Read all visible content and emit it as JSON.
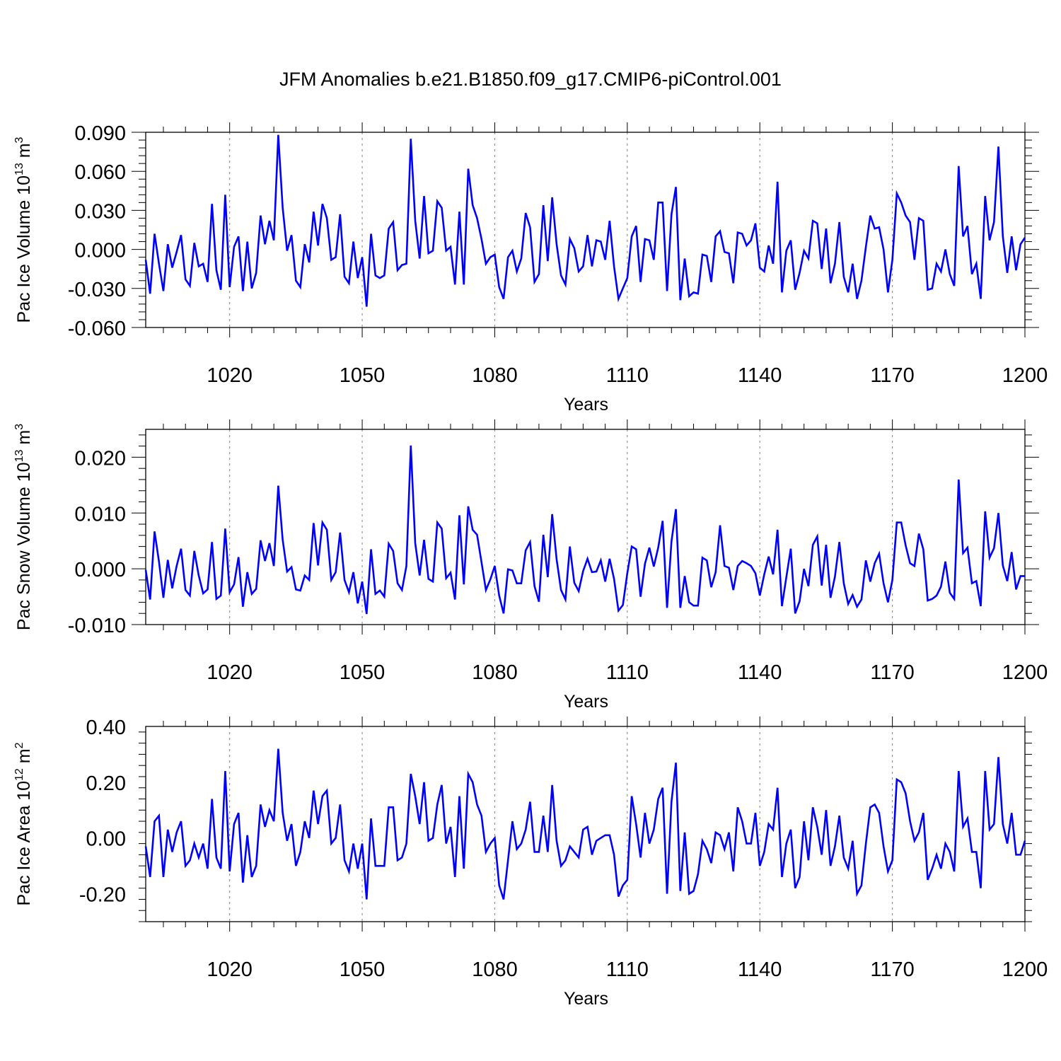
{
  "title": "JFM Anomalies b.e21.B1850.f09_g17.CMIP6-piControl.001",
  "colors": {
    "series": "#0000ff",
    "axis": "#000000",
    "grid": "#808080"
  },
  "chart_data": [
    {
      "type": "line",
      "ylabel_main": "Pac Ice Volume 10",
      "ylabel_exp": "13",
      "ylabel_unit": " m",
      "ylabel_unit_exp": "3",
      "xlabel": "Years",
      "xlim": [
        1001,
        1200
      ],
      "ylim": [
        -0.06,
        0.09
      ],
      "yticks": [
        -0.06,
        -0.03,
        0.0,
        0.03,
        0.06,
        0.09
      ],
      "ytick_labels": [
        "-0.060",
        "-0.030",
        "0.000",
        "0.030",
        "0.060",
        "0.090"
      ],
      "xticks": [
        1020,
        1050,
        1080,
        1110,
        1140,
        1170,
        1200
      ],
      "xtick_labels": [
        "1020",
        "1050",
        "1080",
        "1110",
        "1140",
        "1170",
        "1200"
      ],
      "grid_x": true,
      "x_start": 1001,
      "values": [
        -0.008,
        -0.034,
        0.012,
        -0.011,
        -0.032,
        0.004,
        -0.014,
        -0.002,
        0.011,
        -0.023,
        -0.028,
        0.005,
        -0.013,
        -0.011,
        -0.025,
        0.035,
        -0.016,
        -0.031,
        0.042,
        -0.029,
        0.002,
        0.01,
        -0.032,
        0.006,
        -0.03,
        -0.018,
        0.026,
        0.004,
        0.022,
        0.007,
        0.088,
        0.032,
        -0.001,
        0.011,
        -0.024,
        -0.029,
        0.004,
        -0.01,
        0.029,
        0.003,
        0.035,
        0.024,
        -0.008,
        -0.006,
        0.027,
        -0.021,
        -0.026,
        0.006,
        -0.022,
        -0.006,
        -0.044,
        0.012,
        -0.02,
        -0.022,
        -0.02,
        0.016,
        0.021,
        -0.016,
        -0.012,
        -0.011,
        0.085,
        0.022,
        -0.007,
        0.041,
        -0.003,
        -0.001,
        0.037,
        0.032,
        -0.001,
        0.002,
        -0.027,
        0.029,
        -0.027,
        0.062,
        0.034,
        0.024,
        0.008,
        -0.011,
        -0.006,
        -0.004,
        -0.029,
        -0.038,
        -0.006,
        -0.001,
        -0.017,
        -0.007,
        0.028,
        0.017,
        -0.025,
        -0.019,
        0.034,
        -0.009,
        0.04,
        0.004,
        -0.02,
        -0.027,
        0.008,
        0.001,
        -0.017,
        -0.013,
        0.011,
        -0.013,
        0.007,
        0.006,
        -0.008,
        0.022,
        -0.013,
        -0.038,
        -0.03,
        -0.022,
        0.01,
        0.018,
        -0.025,
        0.008,
        0.007,
        -0.008,
        0.036,
        0.036,
        -0.032,
        0.027,
        0.048,
        -0.039,
        -0.007,
        -0.036,
        -0.033,
        -0.034,
        -0.004,
        -0.005,
        -0.025,
        0.01,
        0.014,
        -0.002,
        -0.003,
        -0.026,
        0.013,
        0.012,
        0.003,
        0.007,
        0.02,
        -0.014,
        -0.017,
        0.003,
        -0.011,
        0.052,
        -0.033,
        -0.001,
        0.007,
        -0.031,
        -0.018,
        -0.001,
        -0.007,
        0.022,
        0.02,
        -0.015,
        0.016,
        -0.026,
        -0.011,
        0.021,
        -0.021,
        -0.033,
        -0.011,
        -0.038,
        -0.024,
        0.002,
        0.026,
        0.016,
        0.017,
        0.0,
        -0.033,
        -0.008,
        0.043,
        0.036,
        0.026,
        0.021,
        -0.008,
        0.024,
        0.022,
        -0.031,
        -0.03,
        -0.011,
        -0.017,
        0.0,
        -0.019,
        -0.028,
        0.064,
        0.01,
        0.018,
        -0.019,
        -0.011,
        -0.038,
        0.041,
        0.007,
        0.021,
        0.079,
        0.01,
        -0.018,
        0.01,
        -0.016,
        0.004,
        0.009
      ]
    },
    {
      "type": "line",
      "ylabel_main": "Pac Snow Volume 10",
      "ylabel_exp": "13",
      "ylabel_unit": " m",
      "ylabel_unit_exp": "3",
      "xlabel": "Years",
      "xlim": [
        1001,
        1200
      ],
      "ylim": [
        -0.01,
        0.025
      ],
      "yticks": [
        -0.01,
        0.0,
        0.01,
        0.02
      ],
      "ytick_labels": [
        "-0.010",
        "0.000",
        "0.010",
        "0.020"
      ],
      "xticks": [
        1020,
        1050,
        1080,
        1110,
        1140,
        1170,
        1200
      ],
      "xtick_labels": [
        "1020",
        "1050",
        "1080",
        "1110",
        "1140",
        "1170",
        "1200"
      ],
      "grid_x": true,
      "x_start": 1001,
      "values": [
        -0.0002,
        -0.0055,
        0.0067,
        0.0013,
        -0.0052,
        0.0016,
        -0.0035,
        0.0005,
        0.0036,
        -0.0038,
        -0.0048,
        0.0032,
        -0.0012,
        -0.0044,
        -0.0037,
        0.0048,
        -0.0054,
        -0.0048,
        0.0072,
        -0.0042,
        -0.0028,
        0.0021,
        -0.0068,
        -0.0006,
        -0.0045,
        -0.0036,
        0.0051,
        0.0014,
        0.0046,
        0.0005,
        0.0149,
        0.0052,
        -0.0005,
        0.0003,
        -0.0037,
        -0.0039,
        -0.0012,
        -0.002,
        0.0082,
        0.0006,
        0.0083,
        0.007,
        -0.002,
        -0.0006,
        0.0065,
        -0.002,
        -0.0042,
        -0.0006,
        -0.0062,
        -0.0023,
        -0.0081,
        0.0035,
        -0.0045,
        -0.0039,
        -0.005,
        0.0045,
        0.0032,
        -0.0026,
        -0.0038,
        0.0005,
        0.0221,
        0.0046,
        -0.0012,
        0.0052,
        -0.0018,
        -0.0023,
        0.0083,
        0.0072,
        -0.0017,
        -0.0007,
        -0.0055,
        0.0096,
        -0.0028,
        0.0112,
        0.007,
        0.0061,
        0.0012,
        -0.0038,
        -0.0019,
        0.0005,
        -0.0048,
        -0.008,
        -0.0001,
        -0.0003,
        -0.0026,
        -0.0026,
        0.0033,
        0.0048,
        -0.0031,
        -0.0059,
        0.0061,
        -0.0015,
        0.0098,
        0.0017,
        -0.0038,
        -0.0055,
        0.004,
        -0.0025,
        -0.004,
        -0.0004,
        0.0018,
        -0.0006,
        -0.0005,
        0.0015,
        -0.0023,
        0.0018,
        -0.0018,
        -0.0075,
        -0.0065,
        -0.0008,
        0.004,
        0.0035,
        -0.005,
        0.0009,
        0.0038,
        0.0004,
        0.0038,
        0.0086,
        -0.007,
        0.0049,
        0.0107,
        -0.007,
        -0.0013,
        -0.006,
        -0.0066,
        -0.0066,
        0.002,
        0.0015,
        -0.0033,
        -0.0006,
        0.0078,
        0.0005,
        0.0002,
        -0.0038,
        0.0005,
        0.0014,
        0.001,
        0.0005,
        -0.0008,
        -0.0048,
        -0.001,
        0.0022,
        -0.001,
        0.007,
        -0.0067,
        -0.0015,
        0.0036,
        -0.008,
        -0.0058,
        0.0,
        -0.0031,
        0.0043,
        0.0058,
        -0.003,
        0.0043,
        -0.0052,
        -0.0014,
        0.0048,
        -0.0026,
        -0.0063,
        -0.0047,
        -0.0068,
        -0.0055,
        0.0015,
        -0.0023,
        0.001,
        0.0027,
        -0.0026,
        -0.006,
        -0.002,
        0.0083,
        0.0083,
        0.0042,
        0.001,
        0.0005,
        0.0063,
        0.0035,
        -0.0057,
        -0.0054,
        -0.0048,
        -0.0032,
        0.0013,
        -0.0043,
        -0.0054,
        0.016,
        0.0028,
        0.0038,
        -0.0026,
        -0.0022,
        -0.0067,
        0.0103,
        0.002,
        0.0037,
        0.01,
        0.0006,
        -0.0022,
        0.003,
        -0.0037,
        -0.0013,
        -0.0013
      ]
    },
    {
      "type": "line",
      "ylabel_main": "Pac Ice Area 10",
      "ylabel_exp": "12",
      "ylabel_unit": " m",
      "ylabel_unit_exp": "2",
      "xlabel": "Years",
      "xlim": [
        1001,
        1200
      ],
      "ylim": [
        -0.3,
        0.4
      ],
      "yticks": [
        -0.2,
        0.0,
        0.2,
        0.4
      ],
      "ytick_labels": [
        "-0.20",
        "0.00",
        "0.20",
        "0.40"
      ],
      "xticks": [
        1020,
        1050,
        1080,
        1110,
        1140,
        1170,
        1200
      ],
      "xtick_labels": [
        "1020",
        "1050",
        "1080",
        "1110",
        "1140",
        "1170",
        "1200"
      ],
      "grid_x": true,
      "x_start": 1001,
      "values": [
        -0.03,
        -0.14,
        0.06,
        0.08,
        -0.14,
        0.03,
        -0.05,
        0.02,
        0.06,
        -0.1,
        -0.08,
        -0.02,
        -0.07,
        -0.02,
        -0.11,
        0.14,
        -0.07,
        -0.11,
        0.24,
        -0.12,
        0.05,
        0.09,
        -0.16,
        0.01,
        -0.14,
        -0.1,
        0.12,
        0.04,
        0.1,
        0.06,
        0.32,
        0.09,
        -0.01,
        0.05,
        -0.1,
        -0.05,
        0.06,
        0.0,
        0.17,
        0.05,
        0.15,
        0.17,
        -0.02,
        0.0,
        0.12,
        -0.08,
        -0.12,
        -0.02,
        -0.11,
        -0.02,
        -0.22,
        0.07,
        -0.1,
        -0.1,
        -0.1,
        0.11,
        0.11,
        -0.08,
        -0.07,
        -0.02,
        0.23,
        0.15,
        0.05,
        0.2,
        -0.01,
        0.0,
        0.12,
        0.19,
        -0.02,
        0.04,
        -0.14,
        0.15,
        -0.11,
        0.23,
        0.2,
        0.12,
        0.08,
        -0.05,
        -0.02,
        0.0,
        -0.17,
        -0.22,
        -0.08,
        0.06,
        -0.04,
        -0.02,
        0.03,
        0.13,
        -0.05,
        -0.05,
        0.08,
        -0.05,
        0.19,
        -0.01,
        -0.1,
        -0.08,
        -0.03,
        -0.05,
        -0.07,
        0.03,
        0.04,
        -0.06,
        -0.01,
        0.0,
        0.01,
        0.01,
        -0.06,
        -0.21,
        -0.17,
        -0.15,
        0.15,
        0.05,
        -0.07,
        0.09,
        -0.02,
        0.03,
        0.14,
        0.18,
        -0.2,
        0.13,
        0.27,
        -0.19,
        0.02,
        -0.2,
        -0.19,
        -0.13,
        -0.01,
        -0.04,
        -0.09,
        0.02,
        0.01,
        -0.04,
        0.02,
        -0.12,
        0.11,
        0.06,
        -0.02,
        -0.02,
        0.09,
        -0.1,
        -0.05,
        0.05,
        0.03,
        0.18,
        -0.14,
        -0.02,
        0.03,
        -0.18,
        -0.14,
        0.06,
        -0.08,
        0.11,
        0.04,
        -0.06,
        0.1,
        -0.1,
        -0.03,
        0.08,
        -0.07,
        -0.11,
        -0.01,
        -0.2,
        -0.17,
        -0.02,
        0.11,
        0.12,
        0.09,
        -0.03,
        -0.12,
        -0.08,
        0.21,
        0.2,
        0.16,
        0.06,
        -0.01,
        0.02,
        0.09,
        -0.15,
        -0.11,
        -0.06,
        -0.11,
        -0.02,
        -0.05,
        -0.12,
        0.24,
        0.04,
        0.07,
        -0.05,
        -0.05,
        -0.18,
        0.24,
        0.03,
        0.05,
        0.29,
        0.05,
        -0.02,
        0.09,
        -0.06,
        -0.06,
        -0.01
      ]
    }
  ]
}
